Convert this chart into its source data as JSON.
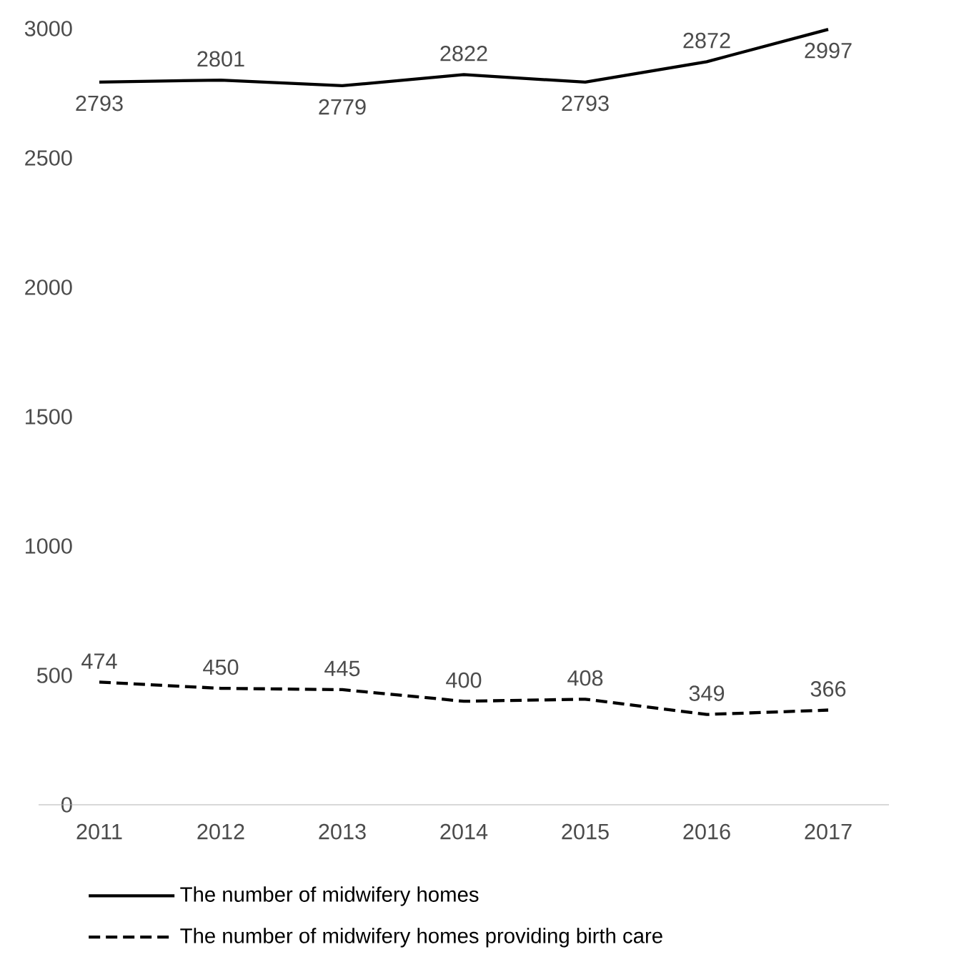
{
  "chart_data": {
    "type": "line",
    "categories": [
      "2011",
      "2012",
      "2013",
      "2014",
      "2015",
      "2016",
      "2017"
    ],
    "series": [
      {
        "name": "The number of midwifery homes",
        "color": "#000000",
        "line_style": "solid",
        "values": [
          2793,
          2801,
          2779,
          2822,
          2793,
          2872,
          2997
        ]
      },
      {
        "name": "The number of midwifery homes providing birth care",
        "color": "#000000",
        "line_style": "dashed",
        "values": [
          474,
          450,
          445,
          400,
          408,
          349,
          366
        ]
      }
    ],
    "ylim": [
      0,
      3000
    ],
    "yticks": [
      0,
      500,
      1000,
      1500,
      2000,
      2500,
      3000
    ],
    "grid": false,
    "legend": "bottom",
    "data_labels": true,
    "marker": "none"
  }
}
